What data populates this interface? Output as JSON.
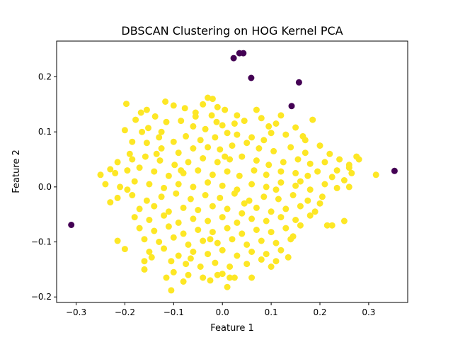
{
  "chart_data": {
    "type": "scatter",
    "title": "DBSCAN Clustering on HOG Kernel PCA",
    "xlabel": "Feature 1",
    "ylabel": "Feature 2",
    "xlim": [
      -0.34,
      0.38
    ],
    "ylim": [
      -0.21,
      0.265
    ],
    "xticks": [
      -0.3,
      -0.2,
      -0.1,
      0.0,
      0.1,
      0.2,
      0.3
    ],
    "xtick_labels": [
      "−0.3",
      "−0.2",
      "−0.1",
      "0.0",
      "0.1",
      "0.2",
      "0.3"
    ],
    "yticks": [
      -0.2,
      -0.1,
      0.0,
      0.1,
      0.2
    ],
    "ytick_labels": [
      "−0.2",
      "−0.1",
      "0.0",
      "0.1",
      "0.2"
    ],
    "grid": false,
    "colors": {
      "cluster": "#fde725",
      "noise": "#440154"
    },
    "series": [
      {
        "cluster": "noise",
        "points": [
          [
            0.035,
            0.243
          ],
          [
            0.043,
            0.243
          ],
          [
            0.023,
            0.234
          ],
          [
            0.059,
            0.198
          ],
          [
            0.157,
            0.19
          ],
          [
            0.142,
            0.147
          ],
          [
            -0.31,
            -0.069
          ],
          [
            0.353,
            0.029
          ]
        ]
      },
      {
        "cluster": "cluster",
        "points": [
          [
            -0.03,
            0.162
          ],
          [
            -0.02,
            0.16
          ],
          [
            -0.04,
            0.15
          ],
          [
            -0.01,
            0.145
          ],
          [
            -0.197,
            0.151
          ],
          [
            -0.155,
            0.14
          ],
          [
            -0.167,
            0.135
          ],
          [
            -0.1,
            0.148
          ],
          [
            -0.117,
            0.155
          ],
          [
            -0.077,
            0.143
          ],
          [
            0.005,
            0.14
          ],
          [
            -0.022,
            0.13
          ],
          [
            -0.055,
            0.128
          ],
          [
            -0.012,
            0.118
          ],
          [
            -0.138,
            0.128
          ],
          [
            -0.178,
            0.122
          ],
          [
            -0.152,
            0.107
          ],
          [
            -0.115,
            0.118
          ],
          [
            -0.085,
            0.12
          ],
          [
            -0.06,
            0.11
          ],
          [
            -0.035,
            0.105
          ],
          [
            0.0,
            0.112
          ],
          [
            0.025,
            0.115
          ],
          [
            0.045,
            0.12
          ],
          [
            0.08,
            0.125
          ],
          [
            0.095,
            0.11
          ],
          [
            0.11,
            0.115
          ],
          [
            0.15,
            0.108
          ],
          [
            0.185,
            0.122
          ],
          [
            0.13,
            0.095
          ],
          [
            0.165,
            0.092
          ],
          [
            0.1,
            0.098
          ],
          [
            0.06,
            0.09
          ],
          [
            0.03,
            0.095
          ],
          [
            0.01,
            0.098
          ],
          [
            -0.015,
            0.09
          ],
          [
            -0.045,
            0.085
          ],
          [
            -0.075,
            0.092
          ],
          [
            -0.1,
            0.082
          ],
          [
            -0.13,
            0.09
          ],
          [
            -0.165,
            0.1
          ],
          [
            -0.2,
            0.103
          ],
          [
            -0.185,
            0.082
          ],
          [
            -0.155,
            0.08
          ],
          [
            -0.125,
            0.07
          ],
          [
            -0.09,
            0.062
          ],
          [
            -0.06,
            0.07
          ],
          [
            -0.03,
            0.072
          ],
          [
            -0.005,
            0.068
          ],
          [
            0.02,
            0.075
          ],
          [
            0.05,
            0.08
          ],
          [
            0.075,
            0.07
          ],
          [
            0.105,
            0.065
          ],
          [
            0.14,
            0.072
          ],
          [
            0.17,
            0.062
          ],
          [
            0.2,
            0.075
          ],
          [
            0.22,
            0.06
          ],
          [
            0.24,
            0.05
          ],
          [
            0.275,
            0.055
          ],
          [
            0.26,
            0.04
          ],
          [
            0.235,
            0.03
          ],
          [
            0.21,
            0.045
          ],
          [
            0.18,
            0.042
          ],
          [
            0.155,
            0.05
          ],
          [
            0.125,
            0.045
          ],
          [
            0.095,
            0.04
          ],
          [
            0.07,
            0.048
          ],
          [
            0.04,
            0.055
          ],
          [
            0.015,
            0.05
          ],
          [
            -0.01,
            0.045
          ],
          [
            -0.04,
            0.052
          ],
          [
            -0.07,
            0.045
          ],
          [
            -0.098,
            0.04
          ],
          [
            -0.128,
            0.048
          ],
          [
            -0.158,
            0.055
          ],
          [
            -0.19,
            0.06
          ],
          [
            -0.215,
            0.045
          ],
          [
            -0.23,
            0.032
          ],
          [
            -0.25,
            0.022
          ],
          [
            -0.22,
            0.025
          ],
          [
            -0.195,
            0.03
          ],
          [
            -0.17,
            0.035
          ],
          [
            -0.14,
            0.028
          ],
          [
            -0.11,
            0.02
          ],
          [
            -0.08,
            0.025
          ],
          [
            -0.05,
            0.03
          ],
          [
            -0.02,
            0.022
          ],
          [
            0.01,
            0.028
          ],
          [
            0.035,
            0.02
          ],
          [
            0.065,
            0.03
          ],
          [
            0.09,
            0.022
          ],
          [
            0.12,
            0.028
          ],
          [
            0.15,
            0.025
          ],
          [
            0.175,
            0.02
          ],
          [
            0.195,
            0.028
          ],
          [
            0.225,
            0.018
          ],
          [
            0.25,
            0.012
          ],
          [
            0.265,
            0.025
          ],
          [
            0.28,
            0.05
          ],
          [
            0.315,
            0.022
          ],
          [
            -0.24,
            0.005
          ],
          [
            -0.21,
            0.0
          ],
          [
            -0.18,
            0.01
          ],
          [
            -0.15,
            0.005
          ],
          [
            -0.12,
            -0.002
          ],
          [
            -0.09,
            0.005
          ],
          [
            -0.06,
            0.0
          ],
          [
            -0.03,
            0.008
          ],
          [
            0.0,
            0.002
          ],
          [
            0.03,
            -0.005
          ],
          [
            0.06,
            0.005
          ],
          [
            0.09,
            0.0
          ],
          [
            0.12,
            0.008
          ],
          [
            0.15,
            0.002
          ],
          [
            0.18,
            -0.005
          ],
          [
            0.21,
            0.005
          ],
          [
            0.235,
            -0.002
          ],
          [
            0.26,
            0.0
          ],
          [
            -0.215,
            -0.02
          ],
          [
            -0.185,
            -0.015
          ],
          [
            -0.155,
            -0.025
          ],
          [
            -0.125,
            -0.018
          ],
          [
            -0.095,
            -0.012
          ],
          [
            -0.065,
            -0.022
          ],
          [
            -0.035,
            -0.015
          ],
          [
            -0.005,
            -0.02
          ],
          [
            0.025,
            -0.012
          ],
          [
            0.055,
            -0.025
          ],
          [
            0.085,
            -0.018
          ],
          [
            0.115,
            -0.022
          ],
          [
            0.145,
            -0.015
          ],
          [
            0.175,
            -0.025
          ],
          [
            0.205,
            -0.018
          ],
          [
            -0.23,
            -0.028
          ],
          [
            -0.17,
            -0.04
          ],
          [
            -0.14,
            -0.035
          ],
          [
            -0.11,
            -0.045
          ],
          [
            -0.08,
            -0.038
          ],
          [
            -0.05,
            -0.042
          ],
          [
            -0.02,
            -0.035
          ],
          [
            0.01,
            -0.04
          ],
          [
            0.04,
            -0.048
          ],
          [
            0.07,
            -0.038
          ],
          [
            0.1,
            -0.045
          ],
          [
            0.13,
            -0.04
          ],
          [
            0.16,
            -0.035
          ],
          [
            0.19,
            -0.045
          ],
          [
            -0.18,
            -0.055
          ],
          [
            -0.15,
            -0.06
          ],
          [
            -0.12,
            -0.052
          ],
          [
            -0.09,
            -0.065
          ],
          [
            -0.06,
            -0.058
          ],
          [
            -0.03,
            -0.062
          ],
          [
            0.0,
            -0.055
          ],
          [
            0.03,
            -0.065
          ],
          [
            0.06,
            -0.058
          ],
          [
            0.09,
            -0.062
          ],
          [
            0.12,
            -0.055
          ],
          [
            0.15,
            -0.06
          ],
          [
            0.18,
            -0.052
          ],
          [
            0.225,
            -0.07
          ],
          [
            0.25,
            -0.062
          ],
          [
            0.215,
            -0.07
          ],
          [
            -0.17,
            -0.075
          ],
          [
            -0.14,
            -0.08
          ],
          [
            -0.11,
            -0.072
          ],
          [
            -0.08,
            -0.085
          ],
          [
            -0.05,
            -0.078
          ],
          [
            -0.02,
            -0.082
          ],
          [
            0.01,
            -0.075
          ],
          [
            0.04,
            -0.085
          ],
          [
            0.07,
            -0.078
          ],
          [
            0.1,
            -0.082
          ],
          [
            0.13,
            -0.075
          ],
          [
            0.16,
            -0.07
          ],
          [
            -0.16,
            -0.095
          ],
          [
            -0.13,
            -0.1
          ],
          [
            -0.1,
            -0.092
          ],
          [
            -0.07,
            -0.105
          ],
          [
            -0.04,
            -0.098
          ],
          [
            -0.01,
            -0.102
          ],
          [
            0.02,
            -0.095
          ],
          [
            0.05,
            -0.105
          ],
          [
            0.08,
            -0.098
          ],
          [
            0.11,
            -0.102
          ],
          [
            0.14,
            -0.095
          ],
          [
            -0.215,
            -0.098
          ],
          [
            -0.2,
            -0.113
          ],
          [
            -0.15,
            -0.118
          ],
          [
            -0.12,
            -0.112
          ],
          [
            -0.09,
            -0.125
          ],
          [
            -0.06,
            -0.118
          ],
          [
            -0.03,
            -0.122
          ],
          [
            0.0,
            -0.115
          ],
          [
            0.03,
            -0.125
          ],
          [
            0.06,
            -0.118
          ],
          [
            0.09,
            -0.122
          ],
          [
            0.12,
            -0.115
          ],
          [
            -0.16,
            -0.135
          ],
          [
            -0.16,
            -0.15
          ],
          [
            -0.105,
            -0.135
          ],
          [
            -0.075,
            -0.14
          ],
          [
            -0.045,
            -0.145
          ],
          [
            -0.015,
            -0.138
          ],
          [
            0.015,
            -0.145
          ],
          [
            0.05,
            -0.14
          ],
          [
            0.08,
            -0.132
          ],
          [
            0.11,
            -0.135
          ],
          [
            0.135,
            -0.128
          ],
          [
            -0.145,
            -0.128
          ],
          [
            -0.1,
            -0.155
          ],
          [
            -0.07,
            -0.16
          ],
          [
            -0.04,
            -0.165
          ],
          [
            -0.01,
            -0.16
          ],
          [
            0.0,
            -0.158
          ],
          [
            0.06,
            -0.165
          ],
          [
            -0.105,
            -0.188
          ],
          [
            -0.08,
            -0.172
          ],
          [
            -0.025,
            -0.17
          ],
          [
            0.01,
            -0.182
          ],
          [
            0.025,
            -0.165
          ],
          [
            -0.185,
            0.05
          ],
          [
            -0.125,
            0.1
          ],
          [
            0.07,
            0.14
          ],
          [
            0.12,
            0.13
          ],
          [
            0.17,
            0.085
          ],
          [
            0.26,
            0.035
          ],
          [
            -0.115,
            -0.165
          ],
          [
            0.1,
            -0.145
          ],
          [
            0.015,
            -0.165
          ],
          [
            -0.055,
            0.135
          ],
          [
            -0.085,
            0.03
          ],
          [
            0.045,
            -0.03
          ],
          [
            0.16,
            0.01
          ],
          [
            0.2,
            -0.03
          ],
          [
            -0.195,
            -0.005
          ],
          [
            -0.135,
            0.06
          ],
          [
            0.005,
            0.055
          ],
          [
            0.085,
            0.085
          ],
          [
            -0.025,
            -0.095
          ],
          [
            0.11,
            -0.005
          ],
          [
            0.145,
            -0.09
          ],
          [
            -0.065,
            -0.13
          ],
          [
            0.03,
            0.13
          ]
        ]
      }
    ]
  }
}
